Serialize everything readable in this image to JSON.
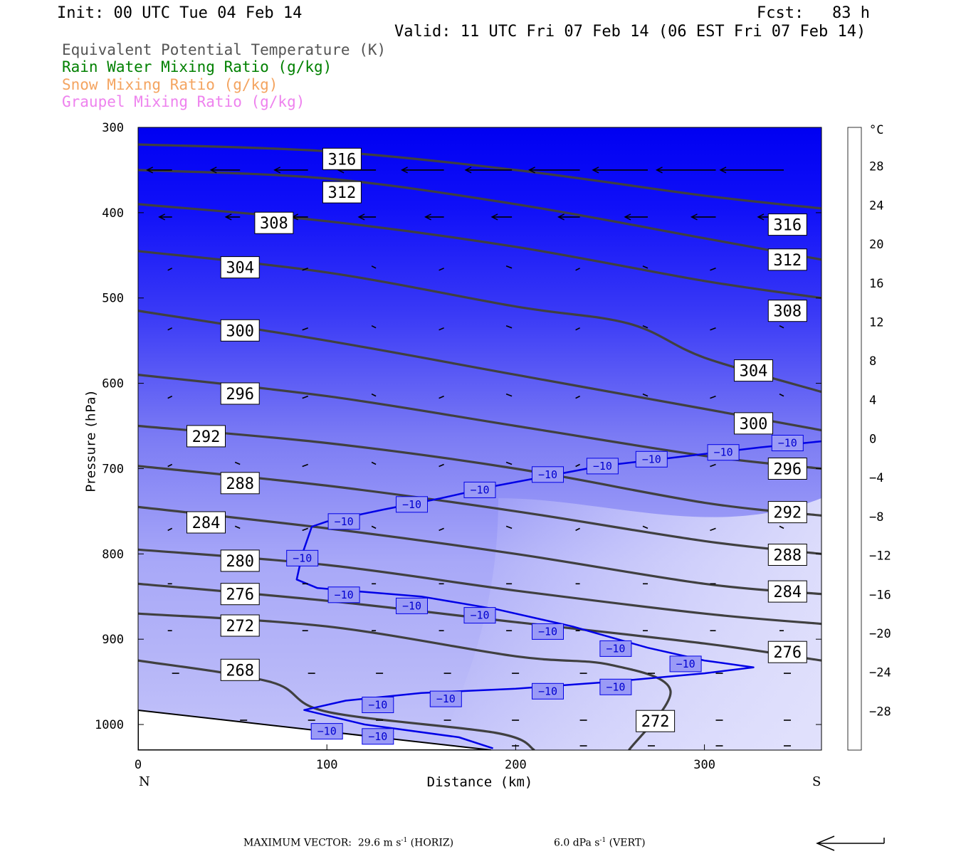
{
  "header": {
    "init": "Init: 00 UTC Tue 04 Feb 14",
    "fcst": "Fcst:   83 h",
    "valid": "Valid: 11 UTC Fri 07 Feb 14 (06 EST Fri 07 Feb 14)"
  },
  "legend": {
    "items": [
      {
        "label": "Equivalent Potential Temperature (K)",
        "color": "#555555"
      },
      {
        "label": "Rain Water Mixing Ratio (g/kg)",
        "color": "#008000"
      },
      {
        "label": "Snow Mixing Ratio (g/kg)",
        "color": "#f4a460"
      },
      {
        "label": "Graupel Mixing Ratio (g/kg)",
        "color": "#ee82ee"
      }
    ]
  },
  "axes": {
    "ylabel": "Pressure (hPa)",
    "xlabel": "Distance (km)",
    "x_left_label": "N",
    "x_right_label": "S"
  },
  "colorbar": {
    "unit": "°C",
    "ticks": [
      "28",
      "24",
      "20",
      "16",
      "12",
      "8",
      "4",
      "0",
      "−4",
      "−8",
      "−12",
      "−16",
      "−20",
      "−24",
      "−28"
    ]
  },
  "footer": {
    "max_vector": "MAXIMUM VECTOR:  29.6 m s",
    "horiz_sup": "-1",
    "horiz_tail": " (HORIZ)",
    "vert": "6.0 dPa s",
    "vert_sup": "-1",
    "vert_tail": " (VERT)"
  },
  "chart_data": {
    "type": "cross-section contour",
    "x": {
      "label": "Distance (km)",
      "range": [
        0,
        362
      ],
      "ticks": [
        0,
        100,
        200,
        300
      ]
    },
    "y": {
      "label": "Pressure (hPa)",
      "range": [
        300,
        1030
      ],
      "ticks": [
        300,
        400,
        500,
        600,
        700,
        800,
        900,
        1000
      ],
      "inverted": true
    },
    "theta_e_contours": [
      {
        "label": "316",
        "points": [
          [
            0,
            320
          ],
          [
            100,
            328
          ],
          [
            200,
            350
          ],
          [
            300,
            380
          ],
          [
            362,
            395
          ]
        ]
      },
      {
        "label": "312",
        "points": [
          [
            0,
            350
          ],
          [
            100,
            360
          ],
          [
            200,
            390
          ],
          [
            300,
            430
          ],
          [
            362,
            455
          ]
        ]
      },
      {
        "label": "308",
        "points": [
          [
            0,
            390
          ],
          [
            100,
            410
          ],
          [
            200,
            440
          ],
          [
            300,
            480
          ],
          [
            362,
            500
          ]
        ]
      },
      {
        "label": "304",
        "points": [
          [
            0,
            445
          ],
          [
            100,
            470
          ],
          [
            200,
            510
          ],
          [
            260,
            530
          ],
          [
            300,
            570
          ],
          [
            362,
            610
          ]
        ]
      },
      {
        "label": "300",
        "points": [
          [
            0,
            515
          ],
          [
            100,
            550
          ],
          [
            200,
            590
          ],
          [
            300,
            630
          ],
          [
            362,
            655
          ]
        ]
      },
      {
        "label": "296",
        "points": [
          [
            0,
            590
          ],
          [
            100,
            615
          ],
          [
            200,
            650
          ],
          [
            300,
            685
          ],
          [
            362,
            700
          ]
        ]
      },
      {
        "label": "292",
        "points": [
          [
            0,
            650
          ],
          [
            100,
            670
          ],
          [
            200,
            700
          ],
          [
            300,
            740
          ],
          [
            362,
            755
          ]
        ]
      },
      {
        "label": "288",
        "points": [
          [
            0,
            697
          ],
          [
            100,
            720
          ],
          [
            200,
            750
          ],
          [
            300,
            785
          ],
          [
            362,
            800
          ]
        ]
      },
      {
        "label": "284",
        "points": [
          [
            0,
            745
          ],
          [
            100,
            770
          ],
          [
            200,
            800
          ],
          [
            300,
            835
          ],
          [
            362,
            847
          ]
        ]
      },
      {
        "label": "280",
        "points": [
          [
            0,
            795
          ],
          [
            100,
            813
          ],
          [
            200,
            843
          ],
          [
            300,
            870
          ],
          [
            362,
            882
          ]
        ]
      },
      {
        "label": "276",
        "points": [
          [
            0,
            835
          ],
          [
            100,
            855
          ],
          [
            200,
            880
          ],
          [
            300,
            905
          ],
          [
            362,
            925
          ]
        ]
      },
      {
        "label": "272",
        "points": [
          [
            0,
            870
          ],
          [
            100,
            885
          ],
          [
            200,
            920
          ],
          [
            250,
            930
          ],
          [
            282,
            960
          ],
          [
            260,
            1030
          ]
        ]
      },
      {
        "label": "268",
        "points": [
          [
            0,
            925
          ],
          [
            70,
            950
          ],
          [
            100,
            985
          ],
          [
            190,
            1010
          ],
          [
            210,
            1030
          ]
        ]
      }
    ],
    "contour_labels_theta_e": [
      {
        "text": "316",
        "x": 108,
        "p": 337
      },
      {
        "text": "312",
        "x": 108,
        "p": 376
      },
      {
        "text": "308",
        "x": 72,
        "p": 412
      },
      {
        "text": "304",
        "x": 54,
        "p": 464
      },
      {
        "text": "300",
        "x": 54,
        "p": 538
      },
      {
        "text": "296",
        "x": 54,
        "p": 612
      },
      {
        "text": "292",
        "x": 36,
        "p": 662
      },
      {
        "text": "288",
        "x": 54,
        "p": 717
      },
      {
        "text": "284",
        "x": 36,
        "p": 763
      },
      {
        "text": "280",
        "x": 54,
        "p": 808
      },
      {
        "text": "276",
        "x": 54,
        "p": 847
      },
      {
        "text": "272",
        "x": 54,
        "p": 884
      },
      {
        "text": "268",
        "x": 54,
        "p": 936
      },
      {
        "text": "316",
        "x": 344,
        "p": 414
      },
      {
        "text": "312",
        "x": 344,
        "p": 455
      },
      {
        "text": "308",
        "x": 344,
        "p": 515
      },
      {
        "text": "304",
        "x": 326,
        "p": 585
      },
      {
        "text": "300",
        "x": 326,
        "p": 647
      },
      {
        "text": "296",
        "x": 344,
        "p": 700
      },
      {
        "text": "292",
        "x": 344,
        "p": 751
      },
      {
        "text": "288",
        "x": 344,
        "p": 801
      },
      {
        "text": "284",
        "x": 344,
        "p": 844
      },
      {
        "text": "276",
        "x": 344,
        "p": 915
      },
      {
        "text": "272",
        "x": 274,
        "p": 996
      }
    ],
    "isotherm_minus10": {
      "value": -10,
      "points": [
        [
          362,
          668
        ],
        [
          330,
          675
        ],
        [
          280,
          688
        ],
        [
          245,
          697
        ],
        [
          190,
          720
        ],
        [
          160,
          735
        ],
        [
          130,
          748
        ],
        [
          100,
          762
        ],
        [
          92,
          768
        ],
        [
          87,
          800
        ],
        [
          84,
          830
        ],
        [
          95,
          840
        ],
        [
          150,
          850
        ],
        [
          190,
          865
        ],
        [
          230,
          885
        ],
        [
          270,
          910
        ],
        [
          300,
          925
        ],
        [
          326,
          933
        ],
        [
          300,
          940
        ],
        [
          250,
          950
        ],
        [
          200,
          958
        ],
        [
          150,
          963
        ],
        [
          110,
          972
        ],
        [
          88,
          983
        ],
        [
          120,
          1000
        ],
        [
          170,
          1015
        ],
        [
          188,
          1028
        ]
      ],
      "labels": [
        {
          "text": "−10",
          "x": 344,
          "p": 670
        },
        {
          "text": "−10",
          "x": 310,
          "p": 681
        },
        {
          "text": "−10",
          "x": 272,
          "p": 689
        },
        {
          "text": "−10",
          "x": 246,
          "p": 697
        },
        {
          "text": "−10",
          "x": 217,
          "p": 707
        },
        {
          "text": "−10",
          "x": 181,
          "p": 725
        },
        {
          "text": "−10",
          "x": 145,
          "p": 742
        },
        {
          "text": "−10",
          "x": 109,
          "p": 762
        },
        {
          "text": "−10",
          "x": 87,
          "p": 805
        },
        {
          "text": "−10",
          "x": 109,
          "p": 848
        },
        {
          "text": "−10",
          "x": 145,
          "p": 861
        },
        {
          "text": "−10",
          "x": 181,
          "p": 872
        },
        {
          "text": "−10",
          "x": 217,
          "p": 891
        },
        {
          "text": "−10",
          "x": 253,
          "p": 911
        },
        {
          "text": "−10",
          "x": 290,
          "p": 929
        },
        {
          "text": "−10",
          "x": 253,
          "p": 956
        },
        {
          "text": "−10",
          "x": 217,
          "p": 961
        },
        {
          "text": "−10",
          "x": 163,
          "p": 970
        },
        {
          "text": "−10",
          "x": 127,
          "p": 977
        },
        {
          "text": "−10",
          "x": 100,
          "p": 1008
        },
        {
          "text": "−10",
          "x": 127,
          "p": 1014
        }
      ]
    },
    "temperature_fill_celsius": {
      "range": [
        -32,
        32
      ],
      "interval": 4,
      "description_colors": [
        "#0000ff",
        "#ffffff",
        "#ff0000"
      ]
    },
    "max_vector": {
      "horizontal_m_s": 29.6,
      "vertical_dPa_s": 6.0
    }
  }
}
